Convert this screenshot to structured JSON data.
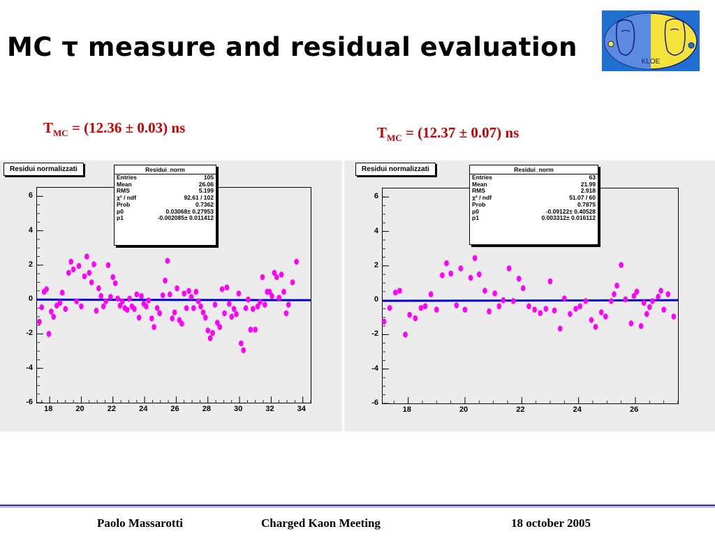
{
  "slide": {
    "title": "MC τ measure and residual evaluation",
    "footer": {
      "author": "Paolo Massarotti",
      "meeting": "Charged Kaon Meeting",
      "date": "18 october 2005"
    },
    "logo_text": "KLOE",
    "colors": {
      "marker": "#ff00ff",
      "fit_line": "#0000cc",
      "caption": "#c80000",
      "footer_rule": "#1f1fc8"
    }
  },
  "captions": [
    {
      "tau": "T",
      "sub": "MC",
      "value": " = (12.36 ± 0.03) ns"
    },
    {
      "tau": "T",
      "sub": "MC",
      "value": " = (12.37 ± 0.07) ns"
    }
  ],
  "panels": [
    {
      "panel_title": "Residui normalizzati",
      "stats": {
        "name": "Residui_norm",
        "rows": [
          {
            "k": "Entries",
            "v": "105"
          },
          {
            "k": "Mean",
            "v": "26.06"
          },
          {
            "k": "RMS",
            "v": "5.199"
          },
          {
            "k": "χ² / ndf",
            "v": "92.61 / 102"
          },
          {
            "k": "Prob",
            "v": "0.7362"
          },
          {
            "k": "p0",
            "v": "0.03068± 0.27953"
          },
          {
            "k": "p1",
            "v": "-0.002085± 0.011412"
          }
        ]
      }
    },
    {
      "panel_title": "Residui normalizzati",
      "stats": {
        "name": "Residui_norm",
        "rows": [
          {
            "k": "Entries",
            "v": "63"
          },
          {
            "k": "Mean",
            "v": "21.99"
          },
          {
            "k": "RMS",
            "v": "2.918"
          },
          {
            "k": "χ² / ndf",
            "v": "51.07 / 60"
          },
          {
            "k": "Prob",
            "v": "0.7875"
          },
          {
            "k": "p0",
            "v": "-0.09122± 0.40528"
          },
          {
            "k": "p1",
            "v": "0.003312± 0.016112"
          }
        ]
      }
    }
  ],
  "chart_data": [
    {
      "type": "scatter",
      "title": "",
      "xlabel": "",
      "ylabel": "",
      "xlim": [
        17.2,
        34.5
      ],
      "ylim": [
        -6,
        6.5
      ],
      "xticks": [
        18,
        20,
        22,
        24,
        26,
        28,
        30,
        32,
        34
      ],
      "yticks": [
        -6,
        -4,
        -2,
        0,
        2,
        4,
        6
      ],
      "grid": false,
      "fit_line": {
        "p0": 0.03068,
        "p1": -0.002085
      },
      "points": [
        [
          17.35,
          -1.3
        ],
        [
          17.5,
          -0.45
        ],
        [
          17.65,
          0.45
        ],
        [
          17.8,
          0.6
        ],
        [
          17.95,
          -2.0
        ],
        [
          18.1,
          -0.7
        ],
        [
          18.25,
          -1.0
        ],
        [
          18.45,
          -0.35
        ],
        [
          18.65,
          -0.2
        ],
        [
          18.8,
          0.4
        ],
        [
          19.0,
          -0.55
        ],
        [
          19.2,
          1.55
        ],
        [
          19.35,
          2.2
        ],
        [
          19.5,
          1.75
        ],
        [
          19.7,
          -0.1
        ],
        [
          19.85,
          1.95
        ],
        [
          20.0,
          -0.4
        ],
        [
          20.2,
          1.35
        ],
        [
          20.35,
          2.5
        ],
        [
          20.5,
          1.55
        ],
        [
          20.65,
          1.0
        ],
        [
          20.8,
          2.05
        ],
        [
          20.95,
          -0.65
        ],
        [
          21.1,
          0.65
        ],
        [
          21.25,
          0.2
        ],
        [
          21.4,
          -0.4
        ],
        [
          21.55,
          -0.1
        ],
        [
          21.7,
          2.0
        ],
        [
          21.85,
          0.15
        ],
        [
          22.0,
          1.3
        ],
        [
          22.15,
          0.95
        ],
        [
          22.3,
          0.05
        ],
        [
          22.45,
          -0.35
        ],
        [
          22.6,
          -0.1
        ],
        [
          22.75,
          -0.5
        ],
        [
          22.9,
          -0.6
        ],
        [
          23.05,
          0.05
        ],
        [
          23.2,
          -0.4
        ],
        [
          23.35,
          -0.55
        ],
        [
          23.5,
          0.3
        ],
        [
          23.65,
          -1.05
        ],
        [
          23.8,
          0.2
        ],
        [
          23.95,
          -0.25
        ],
        [
          24.1,
          -0.4
        ],
        [
          24.25,
          -0.05
        ],
        [
          24.45,
          -1.1
        ],
        [
          24.6,
          -1.6
        ],
        [
          24.8,
          -0.5
        ],
        [
          24.95,
          -0.8
        ],
        [
          25.15,
          0.25
        ],
        [
          25.3,
          1.1
        ],
        [
          25.45,
          2.25
        ],
        [
          25.6,
          0.3
        ],
        [
          25.75,
          -1.1
        ],
        [
          25.9,
          -0.75
        ],
        [
          26.05,
          0.65
        ],
        [
          26.2,
          -1.2
        ],
        [
          26.35,
          -1.4
        ],
        [
          26.5,
          0.35
        ],
        [
          26.65,
          -0.5
        ],
        [
          26.8,
          0.5
        ],
        [
          26.95,
          0.15
        ],
        [
          27.1,
          -0.5
        ],
        [
          27.25,
          0.45
        ],
        [
          27.4,
          -0.1
        ],
        [
          27.55,
          -0.4
        ],
        [
          27.7,
          -0.75
        ],
        [
          27.85,
          -1.05
        ],
        [
          28.0,
          -1.8
        ],
        [
          28.15,
          -2.25
        ],
        [
          28.3,
          -1.95
        ],
        [
          28.45,
          -0.3
        ],
        [
          28.6,
          -1.35
        ],
        [
          28.75,
          -1.6
        ],
        [
          28.9,
          0.6
        ],
        [
          29.05,
          -0.8
        ],
        [
          29.2,
          0.7
        ],
        [
          29.35,
          -0.25
        ],
        [
          29.5,
          -1.0
        ],
        [
          29.65,
          -0.55
        ],
        [
          29.8,
          -0.85
        ],
        [
          29.95,
          0.35
        ],
        [
          30.1,
          -2.55
        ],
        [
          30.25,
          -2.95
        ],
        [
          30.4,
          -0.5
        ],
        [
          30.55,
          0.0
        ],
        [
          30.7,
          -1.75
        ],
        [
          30.85,
          -0.55
        ],
        [
          31.0,
          -1.75
        ],
        [
          31.15,
          -0.4
        ],
        [
          31.3,
          -0.15
        ],
        [
          31.45,
          1.3
        ],
        [
          31.6,
          -0.3
        ],
        [
          31.75,
          0.45
        ],
        [
          31.9,
          0.45
        ],
        [
          32.05,
          0.2
        ],
        [
          32.2,
          1.55
        ],
        [
          32.35,
          1.3
        ],
        [
          32.5,
          0.1
        ],
        [
          32.65,
          1.45
        ],
        [
          32.8,
          0.45
        ],
        [
          32.95,
          -0.8
        ],
        [
          33.1,
          -0.3
        ],
        [
          33.35,
          1.0
        ],
        [
          33.6,
          2.2
        ]
      ]
    },
    {
      "type": "scatter",
      "title": "",
      "xlabel": "",
      "ylabel": "",
      "xlim": [
        17.1,
        27.5
      ],
      "ylim": [
        -6,
        6.5
      ],
      "xticks": [
        18,
        20,
        22,
        24,
        26
      ],
      "yticks": [
        -6,
        -4,
        -2,
        0,
        2,
        4,
        6
      ],
      "grid": false,
      "fit_line": {
        "p0": -0.09122,
        "p1": 0.003312
      },
      "points": [
        [
          17.15,
          -1.25
        ],
        [
          17.35,
          -0.45
        ],
        [
          17.55,
          0.45
        ],
        [
          17.7,
          0.55
        ],
        [
          17.9,
          -2.0
        ],
        [
          18.05,
          -0.85
        ],
        [
          18.25,
          -1.05
        ],
        [
          18.45,
          -0.45
        ],
        [
          18.6,
          -0.35
        ],
        [
          18.8,
          0.35
        ],
        [
          19.0,
          -0.55
        ],
        [
          19.2,
          1.45
        ],
        [
          19.35,
          2.15
        ],
        [
          19.5,
          1.55
        ],
        [
          19.7,
          -0.3
        ],
        [
          19.85,
          1.85
        ],
        [
          20.0,
          -0.55
        ],
        [
          20.2,
          1.3
        ],
        [
          20.35,
          2.45
        ],
        [
          20.5,
          1.5
        ],
        [
          20.7,
          0.55
        ],
        [
          20.85,
          -0.65
        ],
        [
          21.05,
          0.4
        ],
        [
          21.2,
          -0.35
        ],
        [
          21.35,
          0.0
        ],
        [
          21.55,
          1.85
        ],
        [
          21.7,
          -0.05
        ],
        [
          21.9,
          1.25
        ],
        [
          22.05,
          0.7
        ],
        [
          22.25,
          -0.35
        ],
        [
          22.45,
          -0.55
        ],
        [
          22.65,
          -0.75
        ],
        [
          22.85,
          -0.5
        ],
        [
          23.0,
          1.1
        ],
        [
          23.15,
          -0.6
        ],
        [
          23.35,
          -1.65
        ],
        [
          23.5,
          0.1
        ],
        [
          23.7,
          -0.8
        ],
        [
          23.9,
          -0.5
        ],
        [
          24.05,
          -0.35
        ],
        [
          24.25,
          -0.05
        ],
        [
          24.45,
          -1.15
        ],
        [
          24.6,
          -1.55
        ],
        [
          24.8,
          -0.7
        ],
        [
          24.95,
          -0.95
        ],
        [
          25.15,
          -0.05
        ],
        [
          25.35,
          0.85
        ],
        [
          25.5,
          2.05
        ],
        [
          25.65,
          0.05
        ],
        [
          25.85,
          -1.35
        ],
        [
          26.05,
          0.5
        ],
        [
          26.2,
          -1.5
        ],
        [
          26.4,
          -0.8
        ],
        [
          26.6,
          -0.05
        ],
        [
          26.8,
          0.2
        ],
        [
          27.0,
          -0.55
        ],
        [
          27.15,
          0.35
        ],
        [
          27.35,
          -0.95
        ],
        [
          26.9,
          0.55
        ],
        [
          26.5,
          -0.4
        ],
        [
          26.3,
          -0.15
        ],
        [
          25.95,
          0.25
        ],
        [
          25.25,
          0.35
        ]
      ]
    }
  ]
}
